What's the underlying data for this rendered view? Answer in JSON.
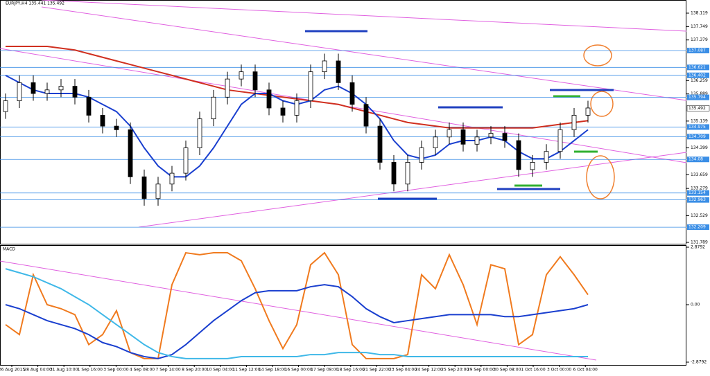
{
  "chart_data": {
    "type": "candlestick",
    "title": "EURJPY,H4  135.441  135.492",
    "ylim": [
      131.752,
      138.482
    ],
    "yticks": [
      138.119,
      137.749,
      137.379,
      136.259,
      135.889,
      135.139,
      134.399,
      133.659,
      133.279,
      132.529,
      131.789
    ],
    "levels": [
      137.087,
      136.621,
      136.402,
      135.794,
      134.975,
      134.709,
      134.08,
      133.154,
      132.963,
      132.209
    ],
    "current_price": 135.492,
    "xticks": [
      "26 Aug 2015",
      "28 Aug 04:00",
      "31 Aug 10:00",
      "1 Sep 16:00",
      "3 Sep 00:00",
      "4 Sep 08:00",
      "7 Sep 14:00",
      "8 Sep 20:00",
      "10 Sep 04:00",
      "11 Sep 12:00",
      "14 Sep 18:00",
      "16 Sep 00:00",
      "17 Sep 08:00",
      "18 Sep 16:00",
      "21 Sep 22:00",
      "23 Sep 04:00",
      "24 Sep 12:00",
      "25 Sep 20:00",
      "29 Sep 00:00",
      "30 Sep 08:00",
      "1 Oct 16:00",
      "3 Oct 00:00",
      "6 Oct 04:00"
    ],
    "open": [
      135.4,
      135.7,
      136.2,
      135.9,
      136.0,
      136.1,
      135.8,
      135.3,
      135.0,
      134.9,
      133.6,
      133.0,
      133.4,
      133.7,
      134.4,
      135.2,
      135.8,
      136.3,
      136.5,
      136.0,
      135.5,
      135.3,
      135.7,
      136.5,
      136.8,
      136.2,
      135.6,
      135.0,
      134.0,
      133.4,
      134.0,
      134.4,
      134.7,
      134.9,
      134.5,
      134.7,
      134.8,
      134.6,
      133.8,
      134.0,
      134.3,
      134.9,
      135.3
    ],
    "high": [
      135.9,
      136.4,
      136.4,
      136.2,
      136.3,
      136.3,
      136.0,
      135.5,
      135.2,
      135.1,
      133.8,
      133.6,
      133.9,
      134.6,
      135.4,
      136.0,
      136.5,
      136.7,
      136.7,
      136.2,
      135.7,
      135.9,
      136.7,
      137.0,
      137.0,
      136.4,
      135.8,
      135.2,
      134.2,
      134.2,
      134.6,
      134.9,
      135.1,
      135.1,
      134.9,
      135.0,
      135.0,
      134.8,
      134.2,
      134.5,
      135.1,
      135.5,
      135.7
    ],
    "low": [
      135.2,
      135.5,
      135.7,
      135.7,
      135.8,
      135.6,
      135.1,
      134.8,
      134.7,
      133.4,
      132.8,
      132.8,
      133.2,
      133.5,
      134.2,
      135.0,
      135.6,
      136.1,
      135.8,
      135.3,
      135.1,
      135.1,
      135.5,
      136.3,
      136.0,
      135.4,
      134.8,
      133.8,
      133.2,
      133.2,
      133.8,
      134.2,
      134.5,
      134.3,
      134.3,
      134.5,
      134.4,
      133.6,
      133.6,
      133.8,
      134.1,
      134.7,
      135.1
    ],
    "close": [
      135.7,
      136.2,
      135.9,
      136.0,
      136.1,
      135.8,
      135.3,
      135.0,
      134.9,
      133.6,
      133.0,
      133.4,
      133.7,
      134.4,
      135.2,
      135.8,
      136.3,
      136.5,
      136.0,
      135.5,
      135.3,
      135.7,
      136.5,
      136.8,
      136.2,
      135.6,
      135.0,
      134.0,
      133.4,
      134.0,
      134.4,
      134.7,
      134.9,
      134.5,
      134.7,
      134.8,
      134.6,
      133.8,
      134.0,
      134.3,
      134.9,
      135.3,
      135.5
    ],
    "indicators": [
      {
        "color": "#d03020",
        "values": [
          137.2,
          137.2,
          137.2,
          137.2,
          137.15,
          137.1,
          137.0,
          136.9,
          136.8,
          136.7,
          136.6,
          136.5,
          136.4,
          136.3,
          136.2,
          136.1,
          136.0,
          135.95,
          135.9,
          135.85,
          135.8,
          135.75,
          135.7,
          135.65,
          135.6,
          135.5,
          135.4,
          135.3,
          135.2,
          135.1,
          135.05,
          135.0,
          134.95,
          134.95,
          134.95,
          134.95,
          134.95,
          134.95,
          134.95,
          135.0,
          135.05,
          135.1,
          135.15
        ]
      },
      {
        "color": "#1a3fcf",
        "values": [
          136.4,
          136.2,
          136.0,
          135.9,
          135.9,
          135.9,
          135.8,
          135.6,
          135.4,
          135.0,
          134.4,
          133.9,
          133.6,
          133.6,
          133.9,
          134.4,
          135.0,
          135.6,
          135.9,
          135.9,
          135.7,
          135.6,
          135.7,
          136.0,
          136.1,
          135.9,
          135.6,
          135.2,
          134.6,
          134.2,
          134.1,
          134.2,
          134.5,
          134.6,
          134.6,
          134.7,
          134.6,
          134.3,
          134.1,
          134.1,
          134.3,
          134.6,
          134.9
        ]
      }
    ],
    "macd": {
      "title": "MACD",
      "y2lim": [
        -3.018,
        2.983
      ],
      "y2ticks": [
        2.8792,
        {
          "value": 0,
          "label": "0.00"
        },
        -2.8792
      ],
      "series": [
        {
          "color": "#f07a1e",
          "values": [
            -1.0,
            -1.5,
            1.5,
            0.0,
            -0.2,
            -0.5,
            -2.0,
            -1.5,
            -0.3,
            -2.4,
            -2.7,
            -2.7,
            1.0,
            2.6,
            2.5,
            2.6,
            2.6,
            2.2,
            0.8,
            -0.8,
            -2.2,
            -1.0,
            2.0,
            2.6,
            1.5,
            -2.0,
            -2.7,
            -2.7,
            -2.7,
            -2.5,
            1.5,
            0.8,
            2.5,
            1.0,
            -1.0,
            2.0,
            1.8,
            -2.0,
            -1.5,
            1.5,
            2.4,
            1.5,
            0.5
          ]
        },
        {
          "color": "#1a3fcf",
          "values": [
            0.0,
            -0.2,
            -0.5,
            -0.8,
            -1.0,
            -1.2,
            -1.5,
            -1.9,
            -2.1,
            -2.4,
            -2.6,
            -2.7,
            -2.5,
            -2.0,
            -1.4,
            -0.8,
            -0.3,
            0.2,
            0.6,
            0.7,
            0.7,
            0.7,
            0.9,
            1.0,
            0.9,
            0.4,
            -0.2,
            -0.6,
            -0.9,
            -0.8,
            -0.7,
            -0.6,
            -0.5,
            -0.5,
            -0.5,
            -0.5,
            -0.6,
            -0.6,
            -0.5,
            -0.4,
            -0.3,
            -0.2,
            0.0
          ]
        },
        {
          "color": "#3fb8e8",
          "values": [
            1.8,
            1.6,
            1.4,
            1.1,
            0.8,
            0.4,
            0.0,
            -0.5,
            -1.0,
            -1.5,
            -2.0,
            -2.4,
            -2.6,
            -2.7,
            -2.7,
            -2.7,
            -2.7,
            -2.6,
            -2.6,
            -2.6,
            -2.6,
            -2.6,
            -2.5,
            -2.5,
            -2.4,
            -2.4,
            -2.4,
            -2.5,
            -2.5,
            -2.6,
            -2.6,
            -2.6,
            -2.6,
            -2.6,
            -2.6,
            -2.6,
            -2.6,
            -2.6,
            -2.6,
            -2.6,
            -2.6,
            -2.6,
            -2.6
          ]
        }
      ]
    }
  }
}
